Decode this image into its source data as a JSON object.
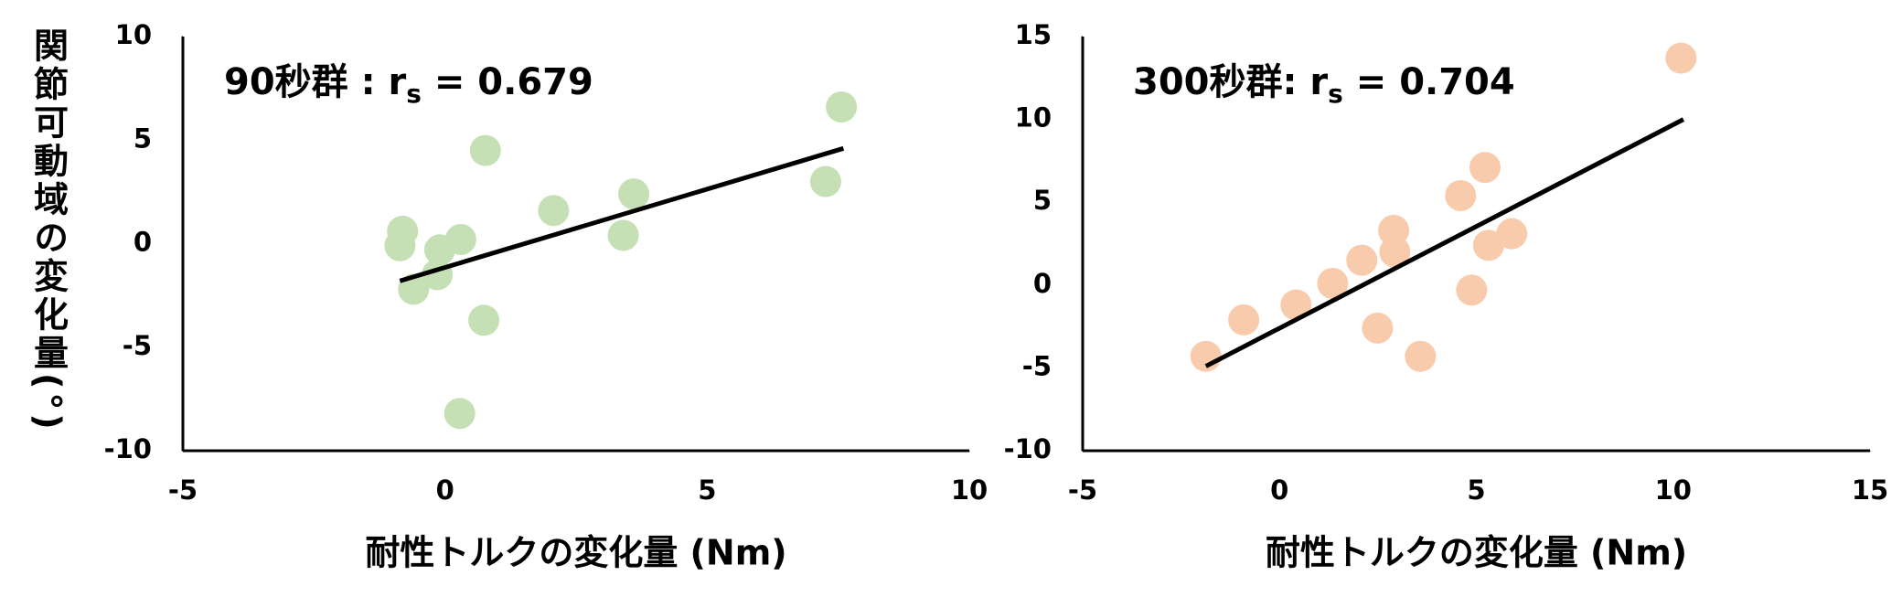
{
  "chart_data": [
    {
      "type": "scatter",
      "annotation": {
        "prefix": "90秒群 : r",
        "subscript": "s",
        "suffix": " = 0.679"
      },
      "x_label": "耐性トルクの変化量 (Nm)",
      "y_label": "関節可動域の変化量(°)",
      "color": "#c5e0b4",
      "x": [
        -0.81,
        -0.86,
        -0.6,
        -0.1,
        -0.15,
        0.3,
        0.77,
        0.74,
        0.28,
        2.07,
        3.6,
        3.4,
        7.26,
        7.56
      ],
      "values": [
        0.6,
        -0.1,
        -2.2,
        -0.3,
        -1.5,
        0.2,
        4.5,
        -3.7,
        -8.2,
        1.6,
        2.4,
        0.4,
        3.0,
        6.6
      ],
      "trendline": {
        "color": "#000000",
        "x": [
          -0.86,
          7.6
        ],
        "y": [
          -1.8,
          4.6
        ]
      },
      "xlim": [
        -5,
        10
      ],
      "xticks": [
        -5,
        0,
        5,
        10
      ],
      "ylim": [
        -10,
        10
      ],
      "yticks": [
        -10,
        -5,
        0,
        5,
        10
      ]
    },
    {
      "type": "scatter",
      "annotation": {
        "prefix": "300秒群: r",
        "subscript": "s",
        "suffix": " = 0.704"
      },
      "x_label": "耐性トルクの変化量 (Nm)",
      "color": "#f8cbad",
      "x": [
        -1.87,
        -0.91,
        0.42,
        1.35,
        2.09,
        2.9,
        2.93,
        2.49,
        3.58,
        4.6,
        4.88,
        5.22,
        5.31,
        5.9,
        10.2
      ],
      "values": [
        -4.3,
        -2.1,
        -1.2,
        0.1,
        1.5,
        3.3,
        2.0,
        -2.6,
        -4.3,
        5.4,
        -0.3,
        7.1,
        2.4,
        3.1,
        13.7
      ],
      "trendline": {
        "color": "#000000",
        "x": [
          -1.87,
          10.26
        ],
        "y": [
          -4.9,
          10.0
        ]
      },
      "xlim": [
        -5,
        15
      ],
      "xticks": [
        -5,
        0,
        5,
        10,
        15
      ],
      "ylim": [
        -10,
        15
      ],
      "yticks": [
        -10,
        -5,
        0,
        5,
        10,
        15
      ]
    }
  ]
}
